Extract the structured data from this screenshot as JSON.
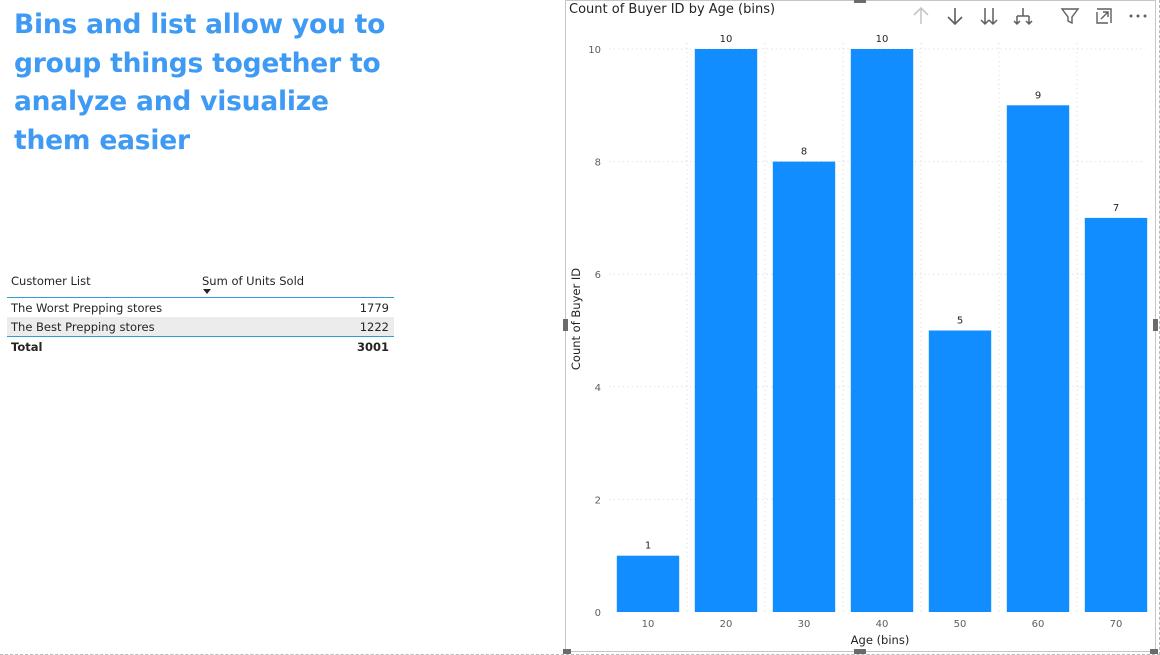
{
  "heading": "Bins and list allow you to group things together to analyze and visualize them easier",
  "table": {
    "columns": [
      "Customer List",
      "Sum of Units Sold"
    ],
    "rows": [
      {
        "name": "The Worst Prepping stores",
        "value": "1779"
      },
      {
        "name": "The Best Prepping stores",
        "value": "1222"
      }
    ],
    "total": {
      "label": "Total",
      "value": "3001"
    }
  },
  "toolbar": {
    "icons": [
      "arrow-up-icon",
      "arrow-down-icon",
      "double-arrow-down-icon",
      "expand-hierarchy-icon",
      "filter-icon",
      "focus-mode-icon",
      "more-options-icon"
    ]
  },
  "colors": {
    "bar": "#118dff",
    "heading": "#3e9af3",
    "accent_line": "#2c9fd8"
  },
  "chart_data": {
    "type": "bar",
    "title": "Count of Buyer ID by Age (bins)",
    "xlabel": "Age (bins)",
    "ylabel": "Count of Buyer ID",
    "categories": [
      "10",
      "20",
      "30",
      "40",
      "50",
      "60",
      "70"
    ],
    "values": [
      1,
      10,
      8,
      10,
      5,
      9,
      7
    ],
    "ylim": [
      0,
      10
    ],
    "yticks": [
      0,
      2,
      4,
      6,
      8,
      10
    ],
    "grid": true,
    "data_labels": true
  }
}
